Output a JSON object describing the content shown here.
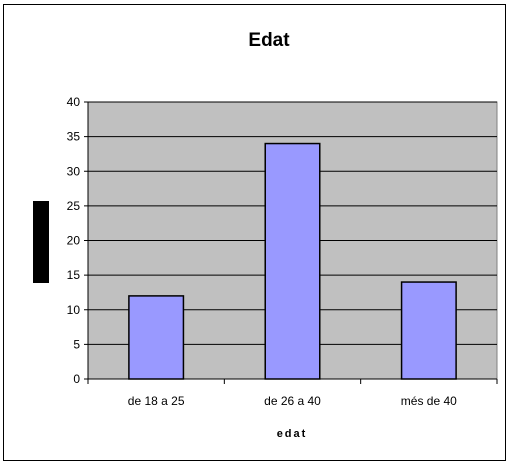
{
  "chart_data": {
    "type": "bar",
    "title": "Edat",
    "xlabel": "edat",
    "ylabel": "",
    "categories": [
      "de 18 a 25",
      "de 26 a 40",
      "més de 40"
    ],
    "values": [
      12,
      34,
      14
    ],
    "ylim": [
      0,
      40
    ],
    "yticks": [
      "0",
      "5",
      "10",
      "15",
      "20",
      "25",
      "30",
      "35",
      "40"
    ],
    "grid": true,
    "legend": "none",
    "colors": {
      "plot_background": "#c0c0c0",
      "bar_fill": "#9999ff",
      "bar_stroke": "#000000",
      "gridline": "#000000",
      "ylabel_block": "#000000"
    }
  }
}
